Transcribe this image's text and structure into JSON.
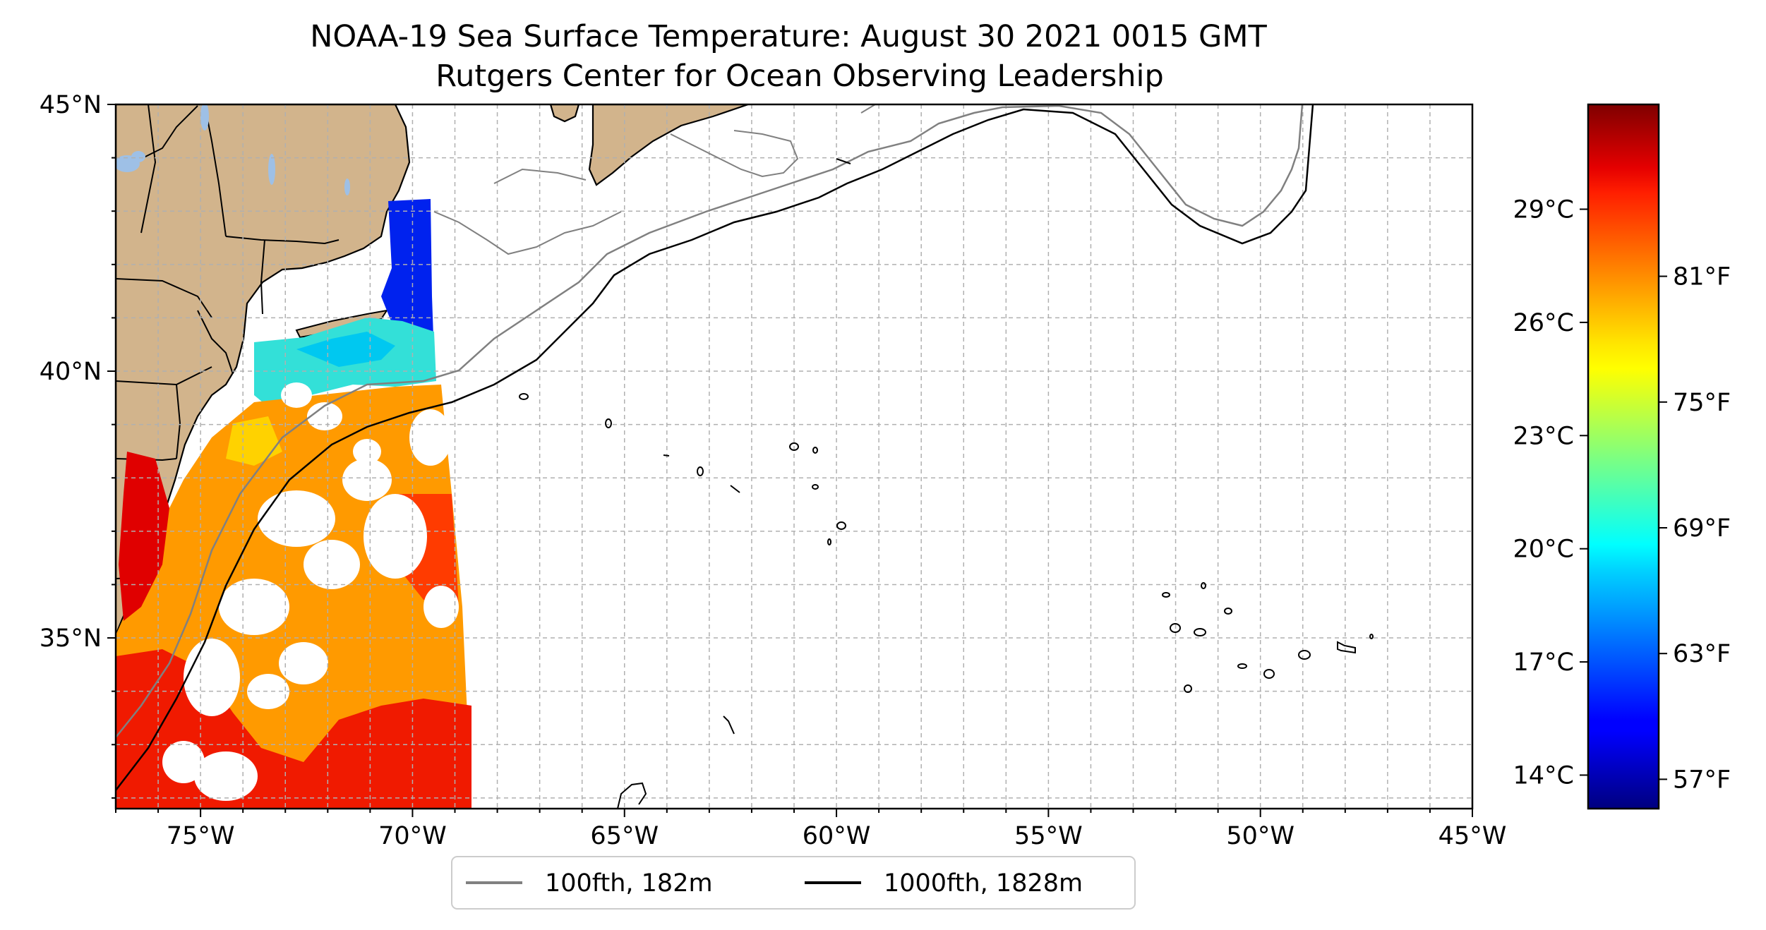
{
  "title": {
    "line1": "NOAA-19 Sea Surface Temperature: August 30 2021 0015 GMT",
    "line2": "Rutgers Center for Ocean Observing Leadership"
  },
  "map": {
    "lon_range": [
      -77,
      -45
    ],
    "lat_range": [
      31.8,
      45
    ],
    "lon_ticks": [
      {
        "value": -75,
        "label": "75°W"
      },
      {
        "value": -70,
        "label": "70°W"
      },
      {
        "value": -65,
        "label": "65°W"
      },
      {
        "value": -60,
        "label": "60°W"
      },
      {
        "value": -55,
        "label": "55°W"
      },
      {
        "value": -50,
        "label": "50°W"
      },
      {
        "value": -45,
        "label": "45°W"
      }
    ],
    "lat_ticks": [
      {
        "value": 45,
        "label": "45°N"
      },
      {
        "value": 40,
        "label": "40°N"
      },
      {
        "value": 35,
        "label": "35°N"
      }
    ],
    "grid": true,
    "colors": {
      "land": "#d2b48c",
      "lakes": "#9ec0e6",
      "ocean": "#ffffff"
    }
  },
  "colorbar": {
    "colormap": "jet",
    "celsius_ticks": [
      {
        "value": 29,
        "label": "29°C"
      },
      {
        "value": 26,
        "label": "26°C"
      },
      {
        "value": 23,
        "label": "23°C"
      },
      {
        "value": 20,
        "label": "20°C"
      },
      {
        "value": 17,
        "label": "17°C"
      },
      {
        "value": 14,
        "label": "14°C"
      }
    ],
    "fahrenheit_ticks": [
      {
        "value": 81,
        "label": "81°F"
      },
      {
        "value": 75,
        "label": "75°F"
      },
      {
        "value": 69,
        "label": "69°F"
      },
      {
        "value": 63,
        "label": "63°F"
      },
      {
        "value": 57,
        "label": "57°F"
      }
    ],
    "range_f": [
      55.6,
      89.2
    ]
  },
  "legend": {
    "items": [
      {
        "label": "100fth, 182m",
        "color": "#808080"
      },
      {
        "label": "1000fth, 1828m",
        "color": "#000000"
      }
    ]
  }
}
